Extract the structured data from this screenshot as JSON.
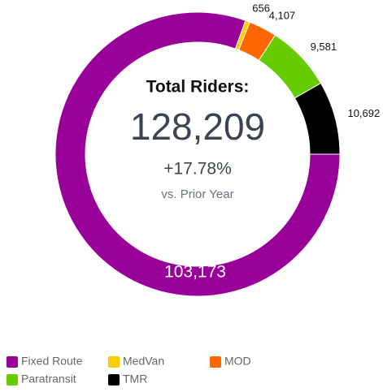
{
  "chart_data": {
    "type": "donut",
    "center_title": "Total Riders:",
    "center_value": "128,209",
    "center_change": "+17.78%",
    "center_note": "vs. Prior Year",
    "categories": [
      "Fixed Route",
      "MedVan",
      "MOD",
      "Paratransit",
      "TMR"
    ],
    "values": [
      103173,
      656,
      4107,
      9581,
      10692
    ],
    "value_labels": [
      "103,173",
      "656",
      "4,107",
      "9,581",
      "10,692"
    ],
    "colors": [
      "#990099",
      "#ffcc00",
      "#ff6600",
      "#66cc00",
      "#000000"
    ]
  }
}
